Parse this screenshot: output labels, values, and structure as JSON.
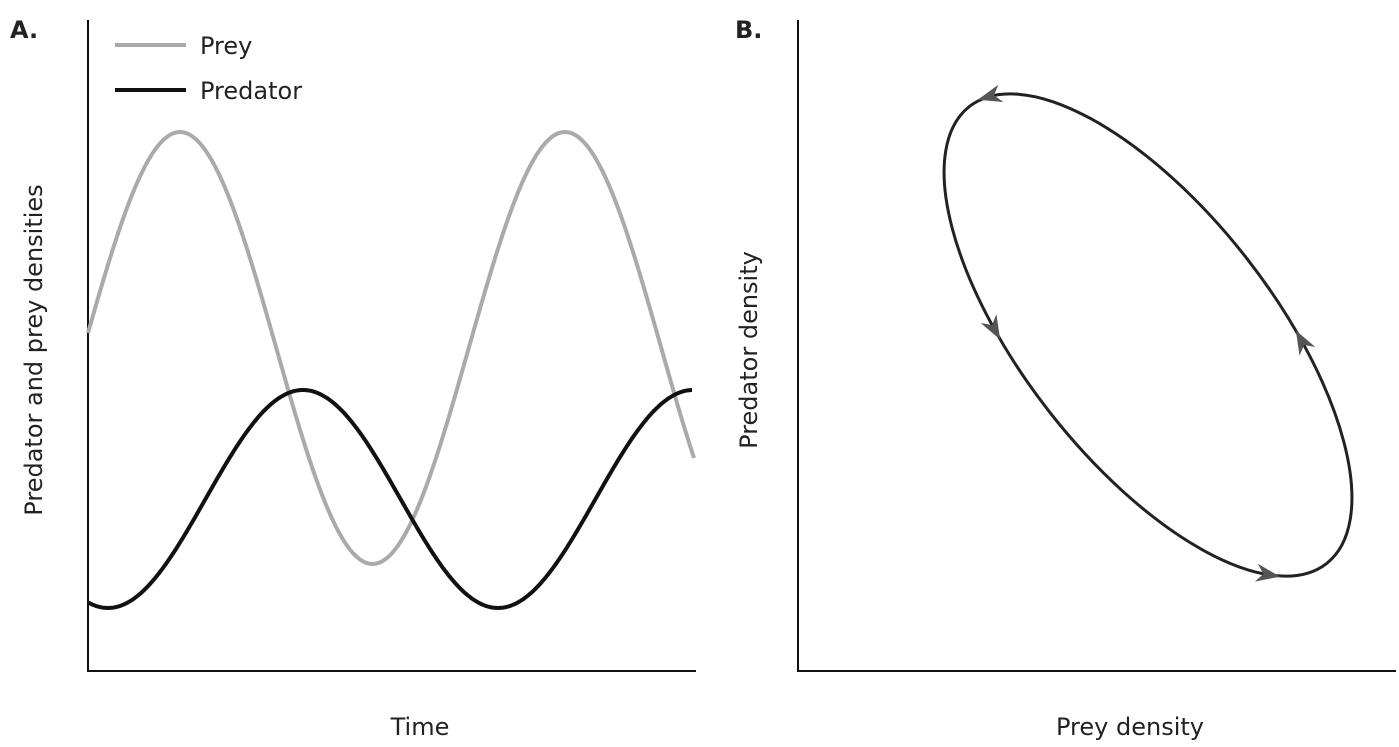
{
  "panels": [
    {
      "label": "A.",
      "legend": [
        "Prey",
        "Predator"
      ],
      "x_label": "Time",
      "y_label": "Predator and prey densities"
    },
    {
      "label": "B.",
      "x_label": "Prey density",
      "y_label": "Predator density"
    }
  ]
}
